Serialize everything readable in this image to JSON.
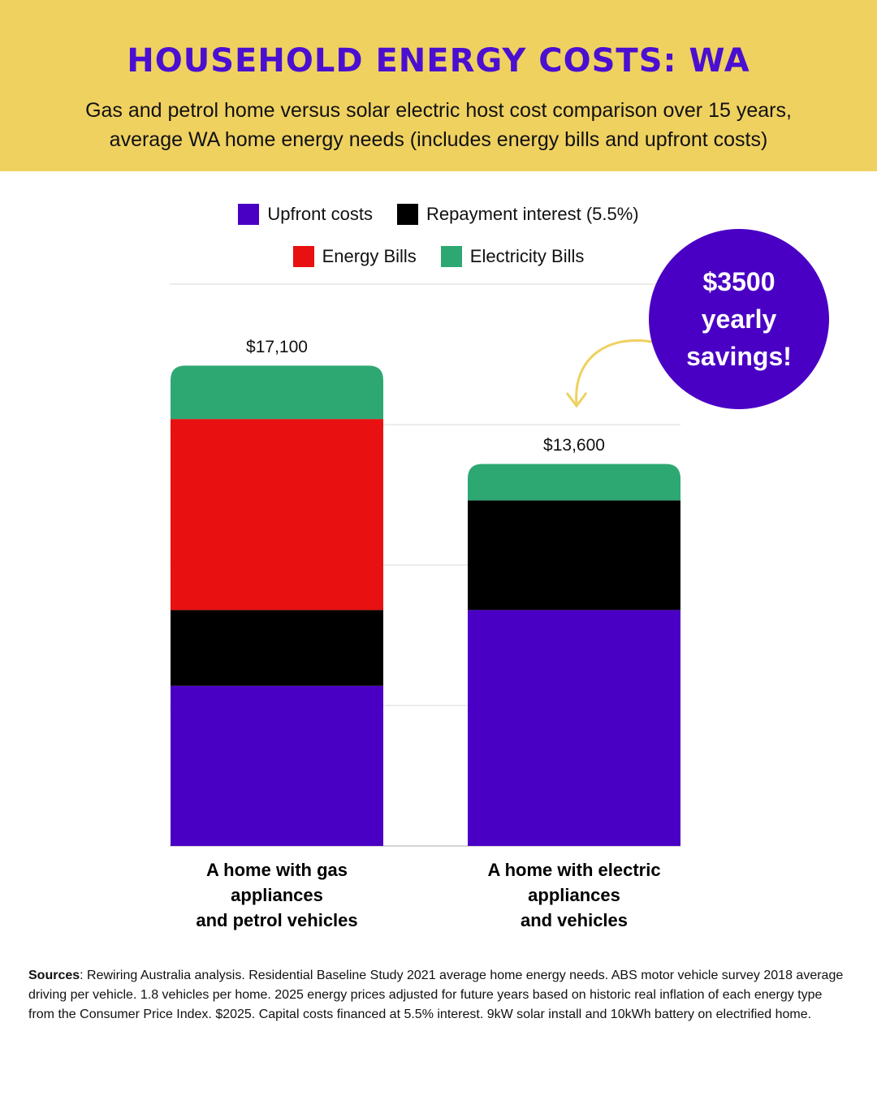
{
  "header": {
    "title": "HOUSEHOLD ENERGY COSTS: WA",
    "subtitle": "Gas and petrol home versus solar electric host cost comparison over 15 years, average WA home energy needs (includes energy bills and upfront costs)"
  },
  "chart_data": {
    "type": "stacked-bar",
    "categories": [
      "A home with gas\nappliances\nand petrol vehicles",
      "A home with electric\nappliances\nand vehicles"
    ],
    "series": [
      {
        "name": "Upfront costs",
        "color": "#4a00c4",
        "values": [
          5700,
          8400
        ]
      },
      {
        "name": "Repayment interest (5.5%)",
        "color": "#000000",
        "values": [
          2700,
          3900
        ]
      },
      {
        "name": "Energy Bills",
        "color": "#e81010",
        "values": [
          6800,
          0
        ]
      },
      {
        "name": "Electricity Bills",
        "color": "#2ea873",
        "values": [
          1900,
          1300
        ]
      }
    ],
    "totals": [
      17100,
      13600
    ],
    "total_labels": [
      "$17,100",
      "$13,600"
    ],
    "ylim": [
      0,
      20000
    ],
    "yticks": [
      0,
      5000,
      10000,
      15000,
      20000
    ],
    "grid": true,
    "annotation": "$3500\nyearly\nsavings!"
  },
  "footer": {
    "sources_label": "Sources",
    "sources_text": ": Rewiring Australia analysis. Residential Baseline Study 2021 average home energy needs. ABS motor vehicle survey 2018 average driving per vehicle. 1.8 vehicles per home. 2025 energy prices adjusted for future years based on historic real inflation of each energy type from the Consumer Price Index. $2025. Capital costs financed at 5.5% interest. 9kW solar install and 10kWh battery on electrified home."
  }
}
